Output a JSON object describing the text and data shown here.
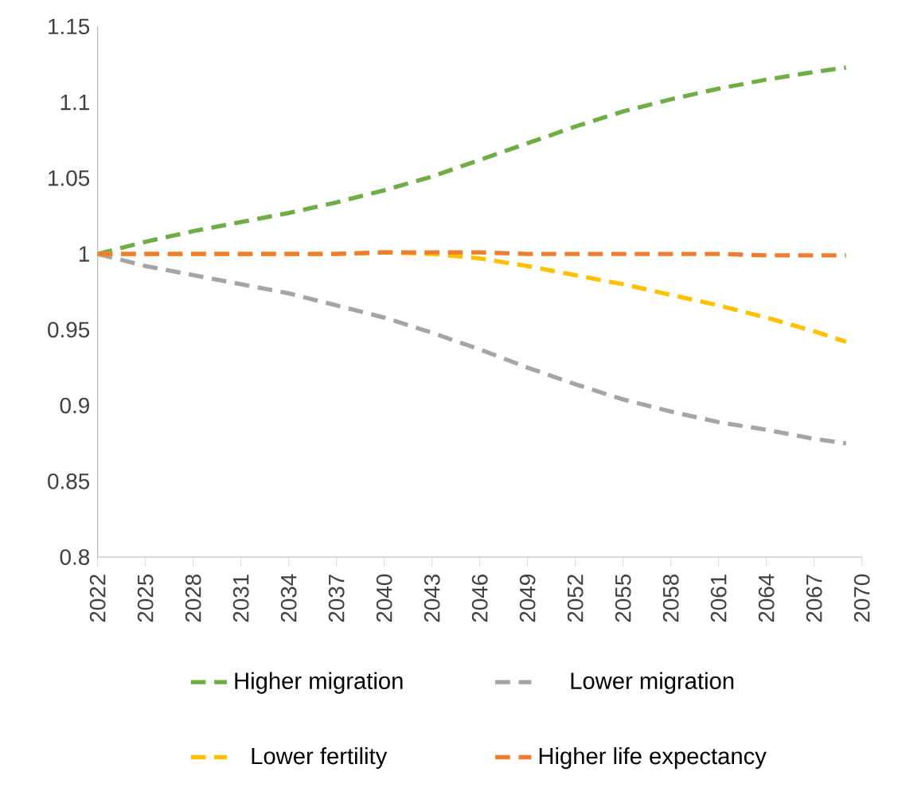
{
  "chart_data": {
    "type": "line",
    "x": [
      2022,
      2025,
      2028,
      2031,
      2034,
      2037,
      2040,
      2043,
      2046,
      2049,
      2052,
      2055,
      2058,
      2061,
      2064,
      2067,
      2069
    ],
    "series": [
      {
        "name": "Higher migration",
        "color": "#70ad47",
        "values": [
          1.0,
          1.008,
          1.015,
          1.021,
          1.027,
          1.034,
          1.042,
          1.051,
          1.062,
          1.073,
          1.084,
          1.094,
          1.102,
          1.109,
          1.115,
          1.12,
          1.123
        ]
      },
      {
        "name": "Lower migration",
        "color": "#a5a5a5",
        "values": [
          1.0,
          0.992,
          0.986,
          0.98,
          0.974,
          0.966,
          0.958,
          0.948,
          0.937,
          0.925,
          0.914,
          0.904,
          0.896,
          0.889,
          0.884,
          0.878,
          0.875
        ]
      },
      {
        "name": "Lower fertility",
        "color": "#ffc000",
        "values": [
          1.0,
          1.0,
          1.0,
          1.0,
          1.0,
          1.0,
          1.001,
          1.0,
          0.997,
          0.992,
          0.986,
          0.98,
          0.973,
          0.966,
          0.958,
          0.949,
          0.942
        ]
      },
      {
        "name": "Higher life expectancy",
        "color": "#ed7d31",
        "values": [
          1.0,
          1.0,
          1.0,
          1.0,
          1.0,
          1.0,
          1.001,
          1.001,
          1.001,
          1.0,
          1.0,
          1.0,
          1.0,
          1.0,
          0.999,
          0.999,
          0.999
        ]
      }
    ],
    "xlim": [
      2022,
      2070
    ],
    "xticks": [
      2022,
      2025,
      2028,
      2031,
      2034,
      2037,
      2040,
      2043,
      2046,
      2049,
      2052,
      2055,
      2058,
      2061,
      2064,
      2067,
      2070
    ],
    "ylim": [
      0.8,
      1.15
    ],
    "yticks": [
      {
        "value": 0.8,
        "label": "0.8"
      },
      {
        "value": 0.85,
        "label": "0.85"
      },
      {
        "value": 0.9,
        "label": "0.9"
      },
      {
        "value": 0.95,
        "label": "0.95"
      },
      {
        "value": 1,
        "label": "1"
      },
      {
        "value": 1.05,
        "label": "1.05"
      },
      {
        "value": 1.1,
        "label": "1.1"
      },
      {
        "value": 1.15,
        "label": "1.15"
      }
    ],
    "legend": "bottom",
    "line_style": "dashed",
    "marker": "none"
  }
}
